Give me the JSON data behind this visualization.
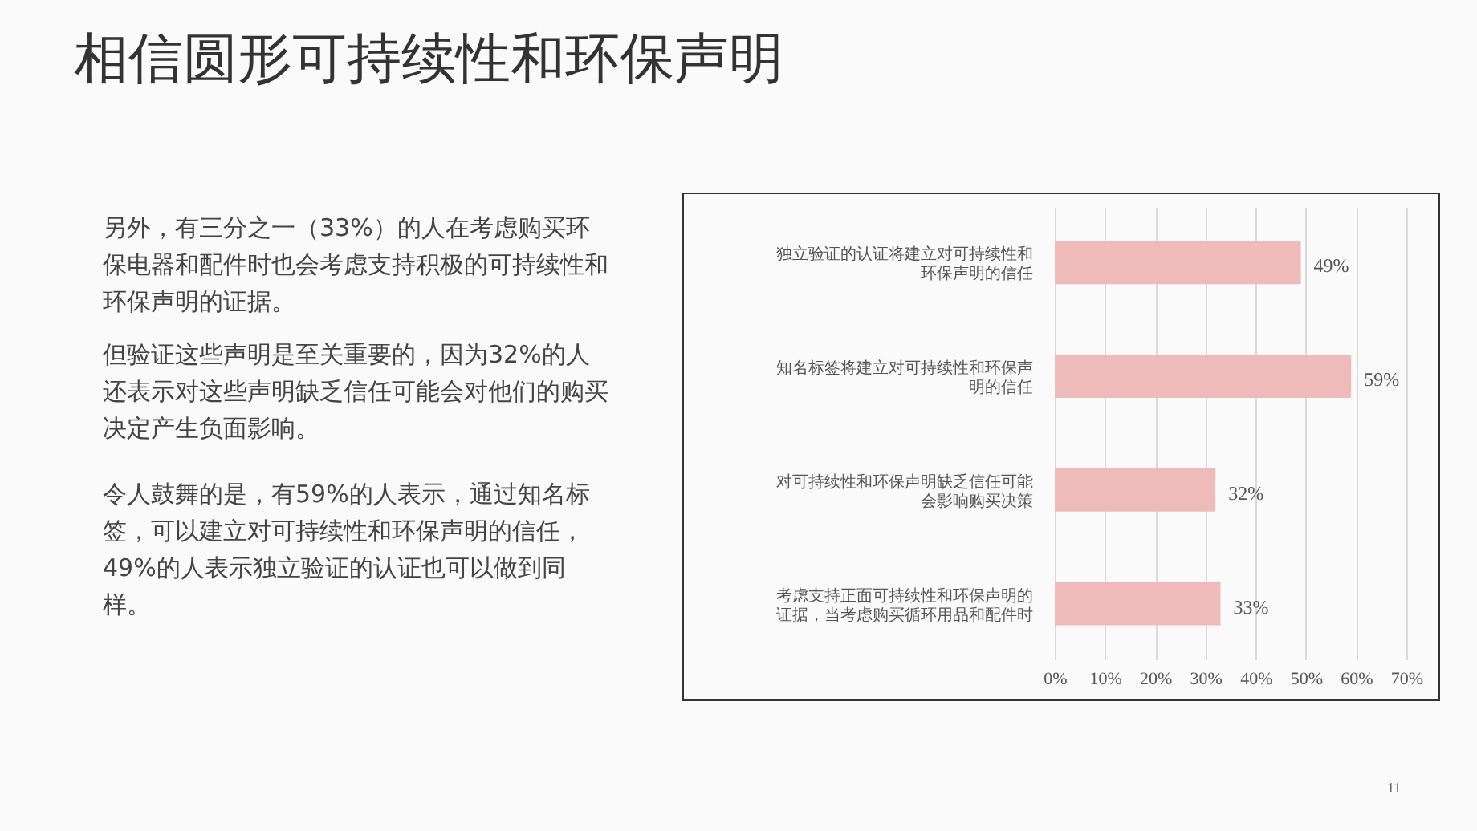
{
  "chart_data": {
    "type": "bar",
    "orientation": "horizontal",
    "title": "相信圆形可持续性和环保声明",
    "annotations": [
      "另外，有三分之一（33%）的人在考虑购买环保电器和配件时也会考虑支持积极的可持续性和环保声明的证据。",
      "但验证这些声明是至关重要的，因为32%的人还表示对这些声明缺乏信任可能会对他们的购买决定产生负面影响。",
      "令人鼓舞的是，有59%的人表示，通过知名标签，可以建立对可持续性和环保声明的信任，49%的人表示独立验证的认证也可以做到同样。",
      "11"
    ],
    "categories": [
      "独立验证的认证将建立对可持续性和环保声明的信任",
      "知名标签将建立对可持续性和环保声明的信任",
      "对可持续性和环保声明缺乏信任可能会影响购买决策",
      "考虑支持正面可持续性和环保声明的证据，当考虑购买循环用品和配件时"
    ],
    "values": [
      49,
      59,
      32,
      33
    ],
    "value_labels": [
      "49%",
      "59%",
      "32%",
      "33%"
    ],
    "color": "#efbbba",
    "xlim": [
      0,
      70
    ],
    "xticks": [
      {
        "value": 0,
        "label": "0%"
      },
      {
        "value": 10,
        "label": "10%"
      },
      {
        "value": 20,
        "label": "20%"
      },
      {
        "value": 30,
        "label": "30%"
      },
      {
        "value": 40,
        "label": "40%"
      },
      {
        "value": 50,
        "label": "50%"
      },
      {
        "value": 60,
        "label": "60%"
      },
      {
        "value": 70,
        "label": "70%"
      }
    ],
    "grid": "x"
  }
}
